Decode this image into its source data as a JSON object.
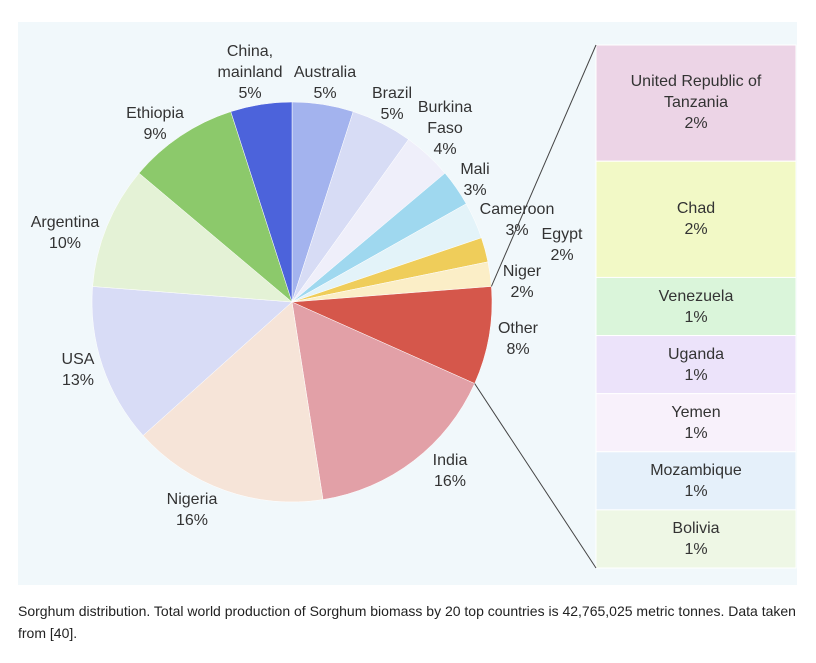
{
  "chart_data": {
    "type": "pie",
    "caption": "Sorghum distribution. Total world production of Sorghum biomass by 20 top countries is 42,765,025 metric tonnes. Data taken from [40].",
    "categories": [
      "Australia",
      "Brazil",
      "Burkina Faso",
      "Mali",
      "Cameroon",
      "Egypt",
      "Niger",
      "Other",
      "India",
      "Nigeria",
      "USA",
      "Argentina",
      "Ethiopia",
      "China, mainland"
    ],
    "values": [
      5,
      5,
      4,
      3,
      3,
      2,
      2,
      8,
      16,
      16,
      13,
      10,
      9,
      5
    ],
    "value_labels": [
      "5%",
      "5%",
      "4%",
      "3%",
      "3%",
      "2%",
      "2%",
      "8%",
      "16%",
      "16%",
      "13%",
      "10%",
      "9%",
      "5%"
    ],
    "colors": [
      "#a3b3ee",
      "#d7dcf5",
      "#efeffa",
      "#9fd8ef",
      "#e3f3f9",
      "#efcd5a",
      "#fbeec7",
      "#d5574b",
      "#e2a0a7",
      "#f6e4d8",
      "#d8dcf6",
      "#e4f2d6",
      "#8cc96b",
      "#4c63db"
    ],
    "breakout": {
      "categories": [
        "United Republic of Tanzania",
        "Chad",
        "Venezuela",
        "Uganda",
        "Yemen",
        "Mozambique",
        "Bolivia"
      ],
      "values": [
        2,
        2,
        1,
        1,
        1,
        1,
        1
      ],
      "value_labels": [
        "2%",
        "2%",
        "1%",
        "1%",
        "1%",
        "1%",
        "1%"
      ],
      "colors": [
        "#ecd4e6",
        "#f2f9c6",
        "#daf5da",
        "#ece3fa",
        "#f8f1fb",
        "#e5f0fa",
        "#eef7e5"
      ]
    }
  }
}
